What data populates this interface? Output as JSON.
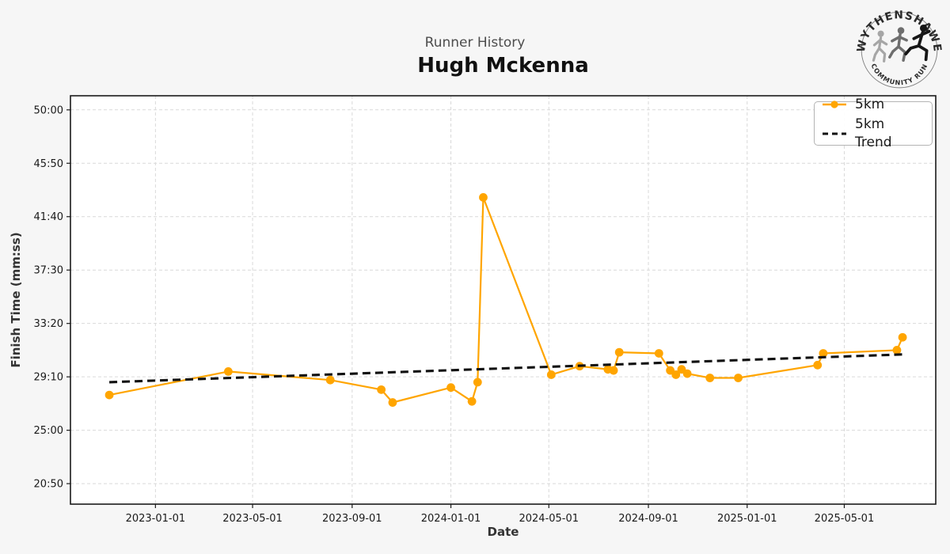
{
  "header": {
    "title": "Runner History",
    "runner_name": "Hugh Mckenna",
    "logo": {
      "top_text": "WYTHENSHAWE",
      "bottom_text": "COMMUNITY RUN"
    }
  },
  "chart_data": {
    "type": "line",
    "title": "Runner History",
    "subtitle": "Hugh Mckenna",
    "xlabel": "Date",
    "ylabel": "Finish Time (mm:ss)",
    "grid": true,
    "legend_position": "upper right",
    "x_ticks": [
      "2023-01-01",
      "2023-05-01",
      "2023-09-01",
      "2024-01-01",
      "2024-05-01",
      "2024-09-01",
      "2025-01-01",
      "2025-05-01"
    ],
    "y_ticks": [
      "50:00",
      "45:50",
      "41:40",
      "37:30",
      "33:20",
      "29:10",
      "25:00",
      "20:50"
    ],
    "x_range": [
      "2022-09-18",
      "2025-08-22"
    ],
    "y_range_mmss": [
      "19:14",
      "51:06"
    ],
    "colors": {
      "line": "#FFA500",
      "trend": "#111111",
      "grid": "#d9d9d9",
      "plot_bg": "#ffffff",
      "fig_bg": "#f6f6f6"
    },
    "series": [
      {
        "name": "5km",
        "style": "line+markers",
        "color": "#FFA500",
        "points": [
          [
            "2022-11-05",
            "27:45"
          ],
          [
            "2023-04-01",
            "29:35"
          ],
          [
            "2023-08-05",
            "28:55"
          ],
          [
            "2023-10-07",
            "28:10"
          ],
          [
            "2023-10-21",
            "27:10"
          ],
          [
            "2024-01-01",
            "28:20"
          ],
          [
            "2024-01-27",
            "27:15"
          ],
          [
            "2024-02-03",
            "28:45"
          ],
          [
            "2024-02-10",
            "43:10"
          ],
          [
            "2024-05-04",
            "29:20"
          ],
          [
            "2024-06-08",
            "30:00"
          ],
          [
            "2024-07-13",
            "29:45"
          ],
          [
            "2024-07-20",
            "29:40"
          ],
          [
            "2024-07-27",
            "31:05"
          ],
          [
            "2024-09-14",
            "31:00"
          ],
          [
            "2024-09-28",
            "29:40"
          ],
          [
            "2024-10-05",
            "29:20"
          ],
          [
            "2024-10-12",
            "29:45"
          ],
          [
            "2024-10-19",
            "29:25"
          ],
          [
            "2024-11-16",
            "29:05"
          ],
          [
            "2024-12-21",
            "29:05"
          ],
          [
            "2025-03-29",
            "30:05"
          ],
          [
            "2025-04-05",
            "31:00"
          ],
          [
            "2025-07-05",
            "31:15"
          ],
          [
            "2025-07-12",
            "32:15"
          ]
        ]
      },
      {
        "name": "5km Trend",
        "style": "dashed",
        "color": "#111111",
        "points": [
          [
            "2022-11-05",
            "28:45"
          ],
          [
            "2025-07-12",
            "30:55"
          ]
        ]
      }
    ]
  }
}
